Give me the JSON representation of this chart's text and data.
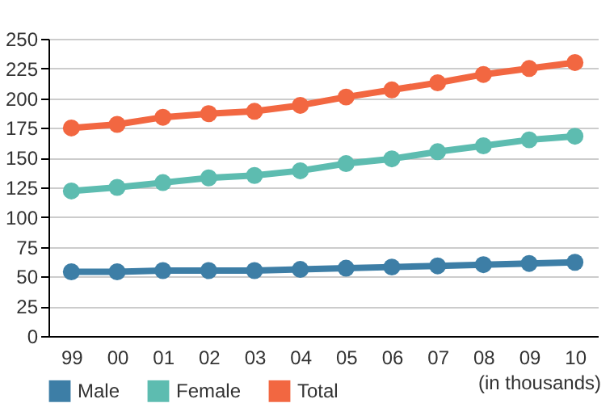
{
  "chart_data": {
    "type": "line",
    "categories": [
      "99",
      "00",
      "01",
      "02",
      "03",
      "04",
      "05",
      "06",
      "07",
      "08",
      "09",
      "10"
    ],
    "series": [
      {
        "name": "Male",
        "color": "#3d7ea6",
        "values": [
          54,
          54,
          55,
          55,
          55,
          56,
          57,
          58,
          59,
          60,
          61,
          62
        ]
      },
      {
        "name": "Female",
        "color": "#5dbcb0",
        "values": [
          122,
          125,
          129,
          133,
          135,
          139,
          145,
          149,
          155,
          160,
          165,
          168
        ]
      },
      {
        "name": "Total",
        "color": "#f26741",
        "values": [
          175,
          178,
          184,
          187,
          189,
          194,
          201,
          207,
          213,
          220,
          225,
          230
        ]
      }
    ],
    "ylim": [
      0,
      250
    ],
    "yticks": [
      0,
      25,
      50,
      75,
      100,
      125,
      150,
      175,
      200,
      225,
      250
    ],
    "grid": "y",
    "legend": "bottom",
    "marker": "circle",
    "annotations": [
      "(in thousands)"
    ]
  }
}
